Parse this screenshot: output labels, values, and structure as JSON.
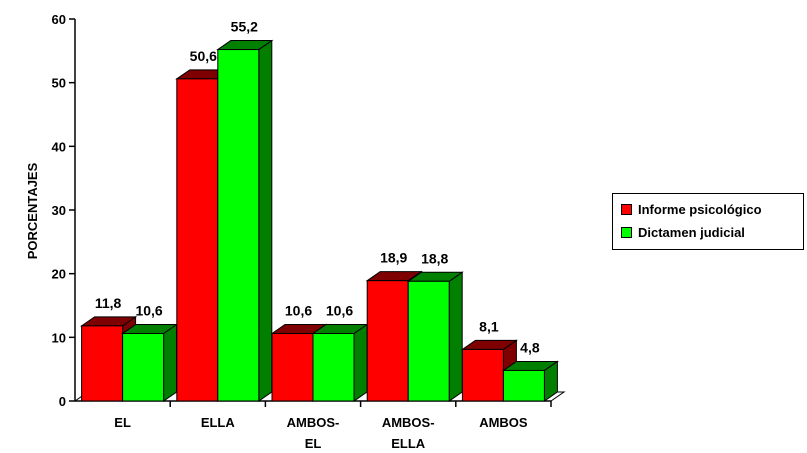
{
  "chart_data": {
    "type": "bar",
    "categories": [
      [
        "EL"
      ],
      [
        "ELLA"
      ],
      [
        "AMBOS-",
        "EL"
      ],
      [
        "AMBOS-",
        "ELLA"
      ],
      [
        "AMBOS"
      ]
    ],
    "series": [
      {
        "name": "Informe psicológico",
        "values": [
          11.8,
          50.6,
          10.6,
          18.9,
          8.1
        ],
        "labels": [
          "11,8",
          "50,6",
          "10,6",
          "18,9",
          "8,1"
        ],
        "color": "#ff0000",
        "side_color": "#7f0000"
      },
      {
        "name": "Dictamen judicial",
        "values": [
          10.6,
          55.2,
          10.6,
          18.8,
          4.8
        ],
        "labels": [
          "10,6",
          "55,2",
          "10,6",
          "18,8",
          "4,8"
        ],
        "color": "#00ff00",
        "side_color": "#007f00"
      }
    ],
    "ylabel": "PORCENTAJES",
    "yticks": [
      "0",
      "10",
      "20",
      "30",
      "40",
      "50",
      "60"
    ],
    "ylim": [
      0,
      60
    ],
    "grid": false,
    "legend_position": "right",
    "style": "3d-clustered-column"
  }
}
